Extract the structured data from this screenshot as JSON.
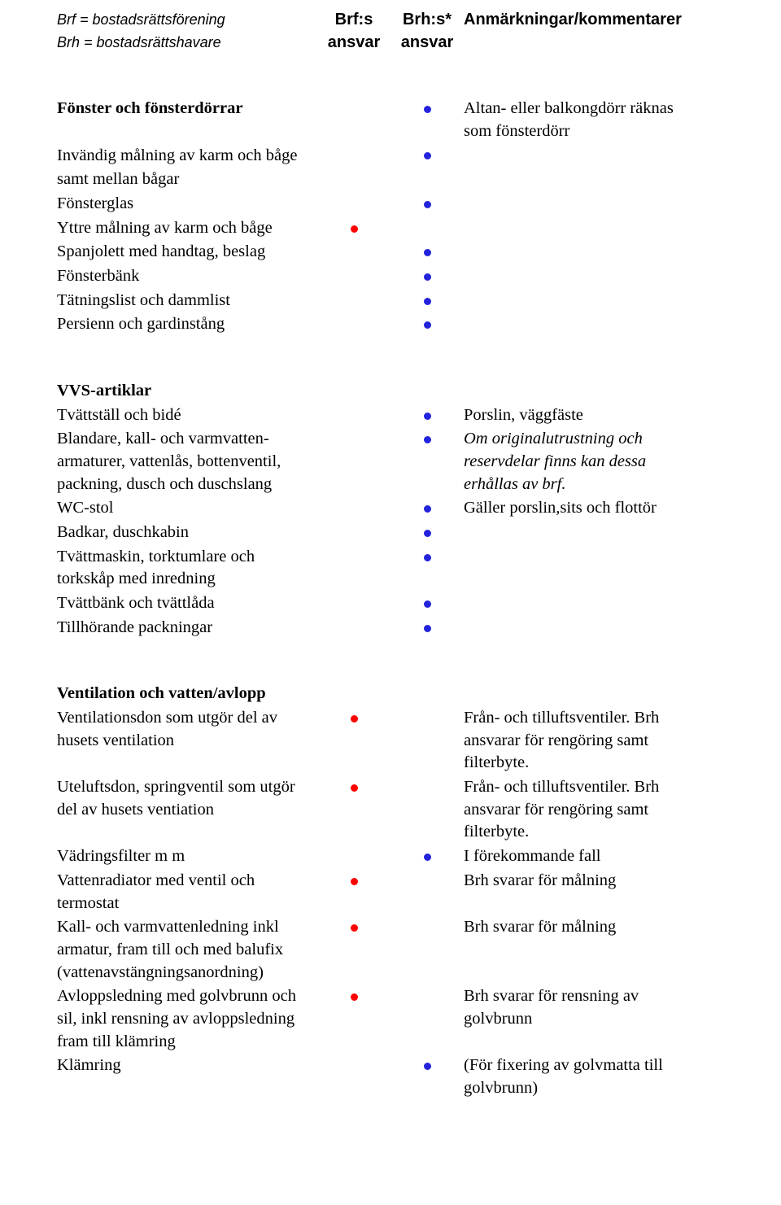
{
  "colors": {
    "blue": "#2323dc",
    "red": "#ff0000",
    "black": "#000000"
  },
  "header": {
    "abbr1": "Brf = bostadsrättsförening",
    "abbr2": "Brh = bostadsrättshavare",
    "col_brf_l1": "Brf:s",
    "col_brf_l2": "ansvar",
    "col_brh_l1": "Brh:s*",
    "col_brh_l2": "ansvar",
    "col_comment": "Anmärkningar/kommentarer"
  },
  "s1": {
    "title": "Fönster och fönsterdörrar",
    "title_comment_l1": "Altan- eller balkongdörr räknas",
    "title_comment_l2": "som fönsterdörr",
    "r1a": "Invändig målning av karm och båge",
    "r1b": "samt mellan bågar",
    "r2": "Fönsterglas",
    "r3": "Yttre målning av karm och båge",
    "r4": "Spanjolett med handtag, beslag",
    "r5": "Fönsterbänk",
    "r6": "Tätningslist och dammlist",
    "r7": "Persienn och gardinstång"
  },
  "s2": {
    "title": "VVS-artiklar",
    "r1": "Tvättställ och bidé",
    "r1_comment": "Porslin, väggfäste",
    "r2a": "Blandare, kall- och varmvatten-",
    "r2b": "armaturer, vattenlås, bottenventil,",
    "r2c": "packning, dusch och duschslang",
    "r2_comment_a": "Om originalutrustning och",
    "r2_comment_b": "reservdelar finns kan dessa",
    "r2_comment_c": "erhållas av brf.",
    "r3": "WC-stol",
    "r3_comment": "Gäller porslin,sits och flottör",
    "r4": "Badkar, duschkabin",
    "r5a": "Tvättmaskin, torktumlare och",
    "r5b": "torkskåp med inredning",
    "r6": "Tvättbänk och tvättlåda",
    "r7": "Tillhörande packningar"
  },
  "s3": {
    "title": "Ventilation och vatten/avlopp",
    "r1a": "Ventilationsdon som utgör del av",
    "r1b": "husets ventilation",
    "r1_comment_a": "Från- och tilluftsventiler. Brh",
    "r1_comment_b": "ansvarar för rengöring samt",
    "r1_comment_c": "filterbyte.",
    "r2a": "Uteluftsdon, springventil som utgör",
    "r2b": "del av husets ventiation",
    "r2_comment_a": "Från- och tilluftsventiler. Brh",
    "r2_comment_b": "ansvarar för rengöring samt",
    "r2_comment_c": "filterbyte.",
    "r3": "Vädringsfilter m m",
    "r3_comment": "I förekommande fall",
    "r4a": "Vattenradiator med ventil och",
    "r4b": "termostat",
    "r4_comment": "Brh svarar för målning",
    "r5a": "Kall- och varmvattenledning inkl",
    "r5b": "armatur, fram till och med balufix",
    "r5c": "(vattenavstängningsanordning)",
    "r5_comment": "Brh svarar för målning",
    "r6a": "Avloppsledning med golvbrunn och",
    "r6b": "sil, inkl rensning av avloppsledning",
    "r6c": "fram till klämring",
    "r6_comment_a": "Brh svarar för rensning av",
    "r6_comment_b": "golvbrunn",
    "r7": "Klämring",
    "r7_comment_a": "(För fixering av golvmatta till",
    "r7_comment_b": "golvbrunn)"
  }
}
